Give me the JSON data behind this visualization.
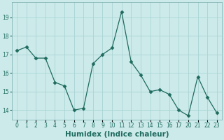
{
  "x_labels": [
    0,
    1,
    2,
    3,
    4,
    5,
    6,
    7,
    8,
    9,
    10,
    11,
    12,
    13,
    14,
    15,
    16,
    17,
    20,
    21,
    22,
    23
  ],
  "y": [
    17.2,
    17.4,
    16.8,
    16.8,
    15.5,
    15.3,
    14.0,
    14.1,
    16.5,
    17.0,
    17.35,
    19.3,
    16.6,
    15.9,
    15.0,
    15.1,
    14.85,
    14.0,
    13.7,
    15.8,
    14.7,
    13.85
  ],
  "line_color": "#1e6b5e",
  "marker": "D",
  "marker_size": 2.5,
  "bg_color": "#cceaea",
  "grid_color": "#aad4d4",
  "xlabel": "Humidex (Indice chaleur)",
  "xlabel_fontsize": 7.5,
  "tick_fontsize": 5.5,
  "ylim": [
    13.5,
    19.8
  ],
  "yticks": [
    14,
    15,
    16,
    17,
    18,
    19
  ],
  "linewidth": 0.9
}
